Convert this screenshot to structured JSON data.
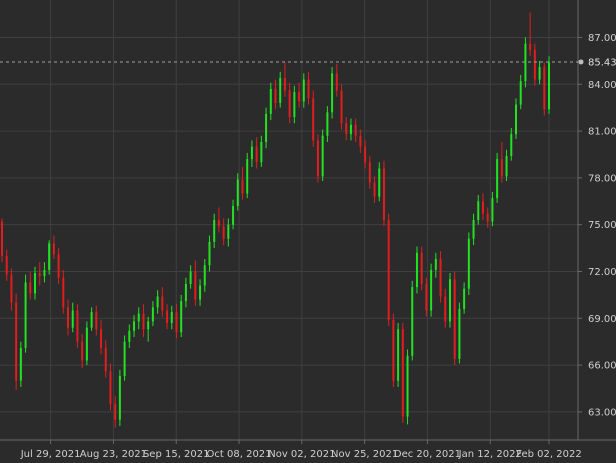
{
  "chart_data": {
    "type": "candlestick",
    "title": "",
    "xlabel": "",
    "ylabel": "",
    "ylim": [
      61.2,
      89.4
    ],
    "grid": true,
    "y_ticks": [
      "87.00",
      "84.00",
      "81.00",
      "78.00",
      "75.00",
      "72.00",
      "69.00",
      "66.00",
      "63.00"
    ],
    "x_ticks": [
      "Jul 29, 2021",
      "Aug 23, 2021",
      "Sep 15, 2021",
      "Oct 08, 2021",
      "Nov 02, 2021",
      "Nov 25, 2021",
      "Dec 20, 2021",
      "Jan 12, 2022",
      "Feb 02, 2022"
    ],
    "last_price": "85.43",
    "colors": {
      "up": "#22e322",
      "down": "#e21d1d",
      "background": "#2b2b2b",
      "grid": "#3f3f3f",
      "text": "#cfcfcf"
    },
    "candles": [
      [
        75.2,
        75.4,
        72.6,
        73.0
      ],
      [
        73.0,
        73.4,
        71.4,
        71.8
      ],
      [
        71.8,
        72.2,
        69.5,
        70.0
      ],
      [
        70.0,
        70.6,
        64.4,
        65.0
      ],
      [
        65.0,
        67.5,
        64.6,
        67.1
      ],
      [
        67.1,
        71.8,
        66.8,
        71.3
      ],
      [
        71.3,
        72.0,
        70.2,
        70.6
      ],
      [
        70.6,
        72.3,
        70.2,
        71.9
      ],
      [
        71.9,
        72.6,
        71.1,
        71.7
      ],
      [
        71.7,
        72.6,
        71.3,
        72.1
      ],
      [
        72.1,
        74.0,
        71.8,
        73.8
      ],
      [
        73.8,
        74.3,
        72.8,
        73.1
      ],
      [
        73.1,
        73.5,
        71.2,
        71.6
      ],
      [
        71.6,
        72.1,
        69.3,
        69.7
      ],
      [
        69.7,
        70.2,
        67.9,
        68.4
      ],
      [
        68.4,
        70.0,
        68.1,
        69.5
      ],
      [
        69.5,
        69.9,
        67.1,
        67.5
      ],
      [
        67.5,
        68.0,
        65.8,
        66.3
      ],
      [
        66.3,
        68.8,
        66.0,
        68.4
      ],
      [
        68.4,
        69.7,
        68.2,
        69.4
      ],
      [
        69.4,
        69.8,
        67.9,
        68.3
      ],
      [
        68.3,
        68.9,
        66.7,
        67.1
      ],
      [
        67.1,
        67.6,
        65.2,
        65.6
      ],
      [
        65.6,
        66.1,
        63.1,
        63.5
      ],
      [
        63.5,
        64.0,
        62.0,
        62.5
      ],
      [
        62.5,
        65.7,
        62.1,
        65.3
      ],
      [
        65.3,
        67.9,
        65.0,
        67.5
      ],
      [
        67.5,
        68.6,
        67.1,
        68.2
      ],
      [
        68.2,
        69.2,
        67.8,
        68.8
      ],
      [
        68.8,
        69.7,
        68.3,
        69.3
      ],
      [
        69.3,
        69.9,
        67.8,
        68.3
      ],
      [
        68.3,
        69.1,
        67.5,
        68.8
      ],
      [
        68.8,
        70.1,
        68.5,
        69.7
      ],
      [
        69.7,
        70.8,
        69.3,
        70.4
      ],
      [
        70.4,
        71.0,
        69.1,
        69.5
      ],
      [
        69.5,
        69.9,
        68.3,
        68.7
      ],
      [
        68.7,
        69.8,
        68.3,
        69.4
      ],
      [
        69.4,
        69.9,
        67.7,
        68.1
      ],
      [
        68.1,
        70.5,
        67.8,
        70.1
      ],
      [
        70.1,
        71.6,
        69.7,
        71.2
      ],
      [
        71.2,
        72.4,
        70.9,
        72.0
      ],
      [
        72.0,
        72.7,
        69.8,
        70.2
      ],
      [
        70.2,
        71.5,
        69.8,
        71.1
      ],
      [
        71.1,
        72.8,
        70.7,
        72.4
      ],
      [
        72.4,
        74.3,
        72.0,
        73.9
      ],
      [
        73.9,
        75.7,
        73.5,
        75.3
      ],
      [
        75.3,
        76.1,
        74.5,
        74.9
      ],
      [
        74.9,
        75.4,
        73.7,
        74.1
      ],
      [
        74.1,
        75.4,
        73.6,
        75.0
      ],
      [
        75.0,
        76.6,
        74.7,
        76.2
      ],
      [
        76.2,
        78.3,
        75.9,
        77.9
      ],
      [
        77.9,
        78.7,
        76.6,
        77.0
      ],
      [
        77.0,
        79.6,
        76.7,
        79.2
      ],
      [
        79.2,
        80.4,
        78.7,
        80.0
      ],
      [
        80.0,
        80.6,
        78.6,
        79.0
      ],
      [
        79.0,
        80.7,
        78.7,
        80.3
      ],
      [
        80.3,
        82.5,
        79.9,
        82.1
      ],
      [
        82.1,
        84.1,
        81.7,
        83.7
      ],
      [
        83.7,
        84.3,
        82.4,
        82.8
      ],
      [
        82.8,
        84.8,
        82.5,
        84.4
      ],
      [
        84.4,
        85.4,
        83.2,
        83.6
      ],
      [
        83.6,
        84.1,
        81.5,
        81.9
      ],
      [
        81.9,
        83.9,
        81.5,
        83.5
      ],
      [
        83.5,
        84.1,
        82.5,
        82.9
      ],
      [
        82.9,
        84.7,
        82.5,
        84.3
      ],
      [
        84.3,
        84.8,
        82.7,
        83.1
      ],
      [
        83.1,
        83.6,
        80.0,
        80.4
      ],
      [
        80.4,
        80.8,
        77.7,
        78.1
      ],
      [
        78.1,
        81.1,
        77.8,
        80.7
      ],
      [
        80.7,
        82.6,
        80.3,
        82.2
      ],
      [
        82.2,
        85.1,
        81.8,
        84.7
      ],
      [
        84.7,
        85.3,
        83.2,
        83.6
      ],
      [
        83.6,
        84.0,
        81.1,
        81.5
      ],
      [
        81.5,
        81.9,
        80.4,
        80.8
      ],
      [
        80.8,
        81.8,
        80.4,
        81.4
      ],
      [
        81.4,
        81.8,
        80.3,
        80.7
      ],
      [
        80.7,
        81.1,
        79.6,
        80.0
      ],
      [
        80.0,
        80.4,
        78.6,
        79.0
      ],
      [
        79.0,
        79.4,
        77.3,
        77.7
      ],
      [
        77.7,
        78.1,
        76.4,
        76.8
      ],
      [
        76.8,
        79.0,
        76.5,
        78.6
      ],
      [
        78.6,
        79.1,
        74.9,
        75.3
      ],
      [
        75.3,
        75.7,
        68.5,
        68.9
      ],
      [
        68.9,
        69.3,
        64.6,
        65.0
      ],
      [
        65.0,
        68.7,
        64.6,
        68.3
      ],
      [
        68.3,
        68.7,
        62.3,
        62.7
      ],
      [
        62.7,
        67.0,
        62.2,
        66.6
      ],
      [
        66.6,
        71.4,
        66.3,
        71.0
      ],
      [
        71.0,
        73.6,
        70.6,
        73.2
      ],
      [
        73.2,
        73.6,
        70.8,
        71.2
      ],
      [
        71.2,
        71.6,
        69.1,
        69.5
      ],
      [
        69.5,
        72.5,
        69.1,
        72.1
      ],
      [
        72.1,
        73.2,
        71.6,
        72.8
      ],
      [
        72.8,
        73.3,
        70.0,
        70.4
      ],
      [
        70.4,
        70.9,
        68.4,
        68.8
      ],
      [
        68.8,
        71.9,
        68.4,
        71.5
      ],
      [
        71.5,
        72.0,
        66.0,
        66.4
      ],
      [
        66.4,
        70.0,
        66.1,
        69.6
      ],
      [
        69.6,
        71.3,
        69.3,
        70.9
      ],
      [
        70.9,
        74.5,
        70.5,
        74.1
      ],
      [
        74.1,
        75.7,
        73.7,
        75.3
      ],
      [
        75.3,
        76.9,
        75.0,
        76.5
      ],
      [
        76.5,
        77.0,
        75.3,
        75.7
      ],
      [
        75.7,
        76.1,
        74.8,
        75.2
      ],
      [
        75.2,
        77.1,
        74.9,
        76.7
      ],
      [
        76.7,
        79.6,
        76.4,
        79.2
      ],
      [
        79.2,
        80.3,
        77.7,
        78.1
      ],
      [
        78.1,
        79.8,
        77.8,
        79.4
      ],
      [
        79.4,
        81.2,
        79.1,
        80.8
      ],
      [
        80.8,
        83.1,
        80.5,
        82.7
      ],
      [
        82.7,
        84.6,
        82.4,
        84.2
      ],
      [
        84.2,
        87.0,
        83.8,
        86.6
      ],
      [
        86.6,
        88.6,
        85.8,
        86.2
      ],
      [
        86.2,
        86.6,
        83.9,
        84.3
      ],
      [
        84.3,
        85.5,
        84.0,
        85.1
      ],
      [
        85.1,
        85.4,
        82.0,
        82.4
      ],
      [
        82.4,
        85.8,
        82.1,
        85.4
      ]
    ]
  }
}
